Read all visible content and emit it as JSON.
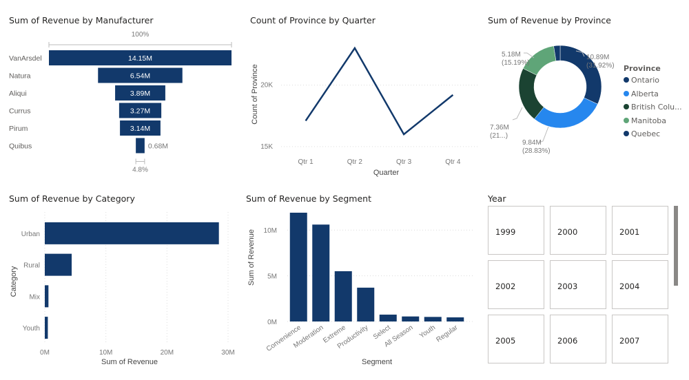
{
  "colors": {
    "primary": "#12396b",
    "ontario": "#12396b",
    "alberta": "#2687ee",
    "british_columbia": "#1b4332",
    "manitoba": "#5fa578",
    "quebec": "#12396b",
    "grid": "#dcdcdc"
  },
  "chart_data": [
    {
      "type": "funnel",
      "title": "Sum of Revenue by Manufacturer",
      "categories": [
        "VanArsdel",
        "Natura",
        "Aliqui",
        "Currus",
        "Pirum",
        "Quibus"
      ],
      "values": [
        14.15,
        6.54,
        3.89,
        3.27,
        3.14,
        0.68
      ],
      "value_labels": [
        "14.15M",
        "6.54M",
        "3.89M",
        "3.27M",
        "3.14M",
        "0.68M"
      ],
      "unit": "M",
      "top_percent_label": "100%",
      "bottom_percent_label": "4.8%"
    },
    {
      "type": "line",
      "title": "Count of Province by Quarter",
      "categories": [
        "Qtr 1",
        "Qtr 2",
        "Qtr 3",
        "Qtr 4"
      ],
      "values": [
        17100,
        23000,
        16000,
        19200
      ],
      "xlabel": "Quarter",
      "ylabel": "Count of Province",
      "yticks": [
        15000,
        20000
      ],
      "ytick_labels": [
        "15K",
        "20K"
      ],
      "ylim": [
        14500,
        24000
      ],
      "grid": true
    },
    {
      "type": "pie",
      "subtype": "donut",
      "title": "Sum of Revenue by Province",
      "legend_title": "Province",
      "legend_position": "right",
      "categories": [
        "Ontario",
        "Alberta",
        "British Columbia",
        "Manitoba",
        "Quebec"
      ],
      "legend_labels": [
        "Ontario",
        "Alberta",
        "British Colu...",
        "Manitoba",
        "Quebec"
      ],
      "values": [
        10.89,
        9.84,
        7.36,
        5.18,
        0.86
      ],
      "percents": [
        31.92,
        28.83,
        21.57,
        15.19,
        2.5
      ],
      "data_labels": [
        {
          "value": "10.89M",
          "percent": "(31.92%)"
        },
        {
          "value": "9.84M",
          "percent": "(28.83%)"
        },
        {
          "value": "7.36M",
          "percent": "(21...)"
        },
        {
          "value": "5.18M",
          "percent": "(15.19%)"
        },
        null
      ]
    },
    {
      "type": "bar",
      "orientation": "horizontal",
      "title": "Sum of Revenue by Category",
      "categories": [
        "Urban",
        "Rural",
        "Mix",
        "Youth"
      ],
      "values": [
        28.5,
        4.4,
        0.6,
        0.5
      ],
      "unit": "M",
      "xlabel": "Sum of Revenue",
      "ylabel": "Category",
      "xticks": [
        0,
        10,
        20,
        30
      ],
      "xtick_labels": [
        "0M",
        "10M",
        "20M",
        "30M"
      ],
      "xlim": [
        0,
        30
      ],
      "grid": true
    },
    {
      "type": "bar",
      "orientation": "vertical",
      "title": "Sum of Revenue by Segment",
      "categories": [
        "Convenience",
        "Moderation",
        "Extreme",
        "Productivity",
        "Select",
        "All Season",
        "Youth",
        "Regular"
      ],
      "values": [
        11.9,
        10.6,
        5.5,
        3.7,
        0.75,
        0.55,
        0.5,
        0.45
      ],
      "unit": "M",
      "xlabel": "Segment",
      "ylabel": "Sum of Revenue",
      "yticks": [
        0,
        5,
        10
      ],
      "ytick_labels": [
        "0M",
        "5M",
        "10M"
      ],
      "ylim": [
        0,
        12.5
      ],
      "grid": true
    }
  ],
  "slicer": {
    "title": "Year",
    "items": [
      "1999",
      "2000",
      "2001",
      "2002",
      "2003",
      "2004",
      "2005",
      "2006",
      "2007"
    ]
  }
}
